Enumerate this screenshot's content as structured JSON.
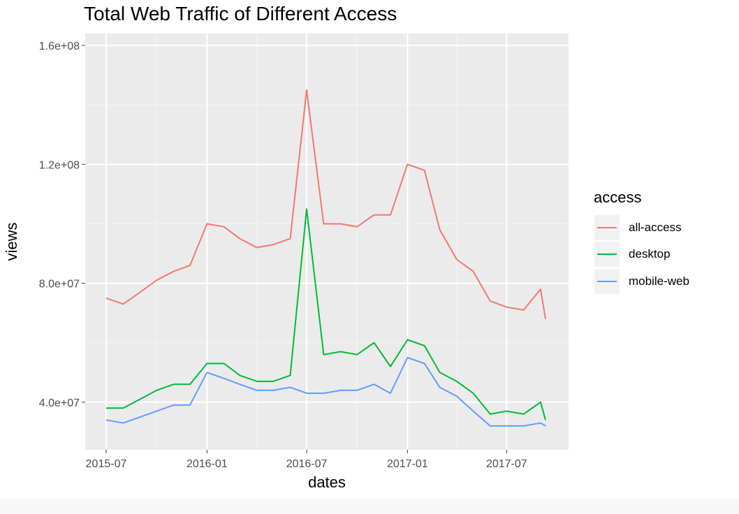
{
  "chart_data": {
    "type": "line",
    "title": "Total Web Traffic of Different Access",
    "xlabel": "dates",
    "ylabel": "views",
    "x_ticks": [
      "2015-07",
      "2016-01",
      "2016-07",
      "2017-01",
      "2017-07"
    ],
    "y_ticks": [
      "4.0e+07",
      "8.0e+07",
      "1.2e+08",
      "1.6e+08"
    ],
    "y_tick_values": [
      40000000,
      80000000,
      120000000,
      160000000
    ],
    "xlim": [
      "2015-07-01",
      "2017-09-10"
    ],
    "ylim": [
      24000000,
      164000000
    ],
    "legend": {
      "title": "access",
      "position": "right"
    },
    "grid": true,
    "x": [
      "2015-07-01",
      "2015-08-01",
      "2015-09-01",
      "2015-10-01",
      "2015-11-01",
      "2015-12-01",
      "2016-01-01",
      "2016-02-01",
      "2016-03-01",
      "2016-04-01",
      "2016-05-01",
      "2016-06-01",
      "2016-07-01",
      "2016-08-01",
      "2016-09-01",
      "2016-10-01",
      "2016-11-01",
      "2016-12-01",
      "2017-01-01",
      "2017-02-01",
      "2017-03-01",
      "2017-04-01",
      "2017-05-01",
      "2017-06-01",
      "2017-07-01",
      "2017-08-01",
      "2017-09-01",
      "2017-09-10"
    ],
    "series": [
      {
        "name": "all-access",
        "color": "#F8766D",
        "values": [
          75,
          73,
          77,
          81,
          84,
          86,
          100,
          99,
          95,
          92,
          93,
          95,
          145,
          100,
          100,
          99,
          103,
          103,
          120,
          118,
          98,
          88,
          84,
          74,
          72,
          71,
          78,
          68
        ]
      },
      {
        "name": "desktop",
        "color": "#00BA38",
        "values": [
          38,
          38,
          41,
          44,
          46,
          46,
          53,
          53,
          49,
          47,
          47,
          49,
          105,
          56,
          57,
          56,
          60,
          52,
          61,
          59,
          50,
          47,
          43,
          36,
          37,
          36,
          40,
          34
        ]
      },
      {
        "name": "mobile-web",
        "color": "#619CFF",
        "values": [
          34,
          33,
          35,
          37,
          39,
          39,
          50,
          48,
          46,
          44,
          44,
          45,
          43,
          43,
          44,
          44,
          46,
          43,
          55,
          53,
          45,
          42,
          37,
          32,
          32,
          32,
          33,
          32
        ]
      }
    ]
  }
}
